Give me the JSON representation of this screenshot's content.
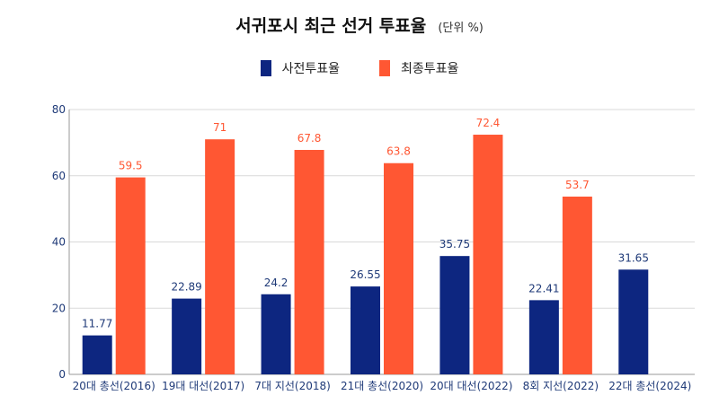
{
  "chart_data": {
    "type": "bar",
    "title": "서귀포시 최근 선거 투표율",
    "subtitle": "(단위 %)",
    "xlabel": "",
    "ylabel": "",
    "ylim": [
      0,
      80
    ],
    "yticks": [
      0,
      20,
      40,
      60,
      80
    ],
    "grid": true,
    "legend_position": "top-center",
    "categories": [
      "20대 총선(2016)",
      "19대 대선(2017)",
      "7대 지선(2018)",
      "21대 총선(2020)",
      "20대 대선(2022)",
      "8회 지선(2022)",
      "22대 총선(2024)"
    ],
    "series": [
      {
        "name": "사전투표율",
        "color": "#0d2680",
        "values": [
          11.77,
          22.89,
          24.2,
          26.55,
          35.75,
          22.41,
          31.65
        ]
      },
      {
        "name": "최종투표율",
        "color": "#ff5733",
        "values": [
          59.5,
          71,
          67.8,
          63.8,
          72.4,
          53.7,
          null
        ]
      }
    ]
  }
}
